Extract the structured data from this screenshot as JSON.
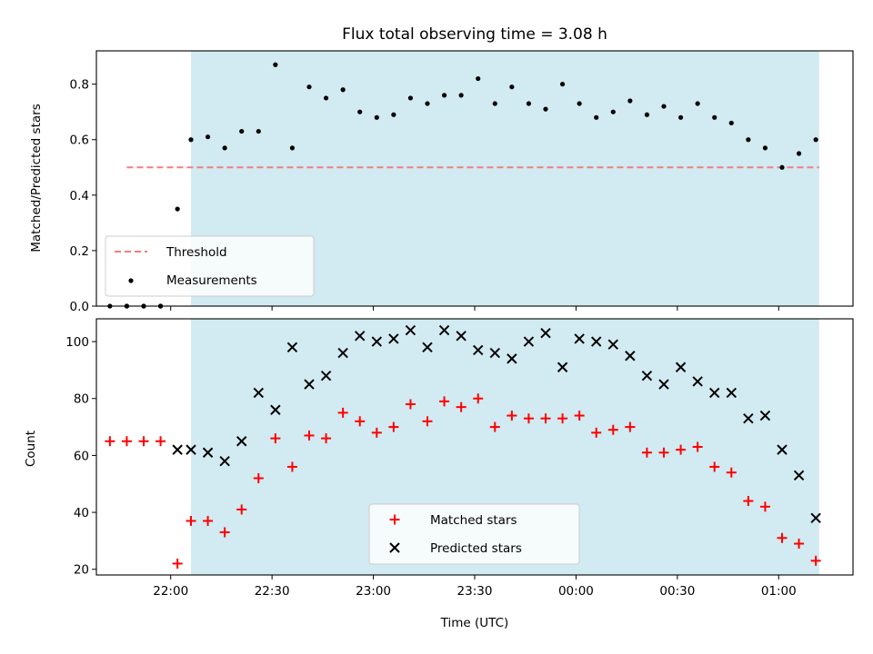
{
  "figure": {
    "title": "Flux total observing time = 3.08 h"
  },
  "chart_data": [
    {
      "type": "scatter",
      "ylabel": "Matched/Predicted stars",
      "xlabel": "",
      "xlim": [
        "21:38",
        "01:22"
      ],
      "ylim": [
        0,
        0.92
      ],
      "yticks": [
        0.0,
        0.2,
        0.4,
        0.6,
        0.8
      ],
      "ytick_labels": [
        "0.0",
        "0.2",
        "0.4",
        "0.6",
        "0.8"
      ],
      "shaded_region": {
        "x": [
          "22:06",
          "01:12"
        ],
        "color": "#add8e6"
      },
      "threshold": {
        "label": "Threshold",
        "y": 0.5,
        "x": [
          "21:47",
          "01:12"
        ],
        "color": "#f08080",
        "style": "dashed"
      },
      "series": [
        {
          "name": "Measurements",
          "marker": "dot",
          "color": "#000000",
          "x": [
            "21:47",
            "21:52",
            "21:57",
            "22:02",
            "22:06",
            "22:11",
            "22:16",
            "22:21",
            "22:26",
            "22:31",
            "22:36",
            "22:41",
            "22:46",
            "22:51",
            "22:56",
            "23:01",
            "23:06",
            "23:11",
            "23:16",
            "23:21",
            "23:26",
            "23:31",
            "23:36",
            "23:41",
            "23:46",
            "23:51",
            "23:56",
            "24:01",
            "24:06",
            "24:11",
            "24:16",
            "24:21",
            "24:26",
            "24:31",
            "24:36",
            "24:41",
            "24:46",
            "24:51",
            "24:56",
            "25:01",
            "25:06",
            "25:11"
          ],
          "y": [
            0.0,
            0.0,
            0.0,
            0.35,
            0.6,
            0.61,
            0.57,
            0.63,
            0.63,
            0.87,
            0.57,
            0.79,
            0.75,
            0.78,
            0.7,
            0.68,
            0.69,
            0.75,
            0.73,
            0.76,
            0.76,
            0.82,
            0.73,
            0.79,
            0.73,
            0.71,
            0.8,
            0.73,
            0.68,
            0.7,
            0.74,
            0.69,
            0.72,
            0.68,
            0.73,
            0.68,
            0.66,
            0.6,
            0.57,
            0.5,
            0.55,
            0.6
          ]
        }
      ],
      "extra_points": {
        "x": [
          "21:42",
          "21:47",
          "21:52",
          "21:57"
        ],
        "y": [
          0.0,
          0.0,
          0.0,
          0.0
        ]
      },
      "legend": {
        "position": "lower-left",
        "entries": [
          "Threshold",
          "Measurements"
        ]
      }
    },
    {
      "type": "scatter",
      "ylabel": "Count",
      "xlabel": "Time (UTC)",
      "xlim": [
        "21:38",
        "01:22"
      ],
      "ylim": [
        18,
        108
      ],
      "yticks": [
        20,
        40,
        60,
        80,
        100
      ],
      "ytick_labels": [
        "20",
        "40",
        "60",
        "80",
        "100"
      ],
      "xticks": [
        "22:00",
        "22:30",
        "23:00",
        "23:30",
        "00:00",
        "00:30",
        "01:00"
      ],
      "shaded_region": {
        "x": [
          "22:06",
          "01:12"
        ],
        "color": "#add8e6"
      },
      "series": [
        {
          "name": "Matched stars",
          "marker": "plus",
          "color": "#ff0000",
          "x": [
            "21:42",
            "21:47",
            "21:52",
            "21:57",
            "22:02",
            "22:06",
            "22:11",
            "22:16",
            "22:21",
            "22:26",
            "22:31",
            "22:36",
            "22:41",
            "22:46",
            "22:51",
            "22:56",
            "23:01",
            "23:06",
            "23:11",
            "23:16",
            "23:21",
            "23:26",
            "23:31",
            "23:36",
            "23:41",
            "23:46",
            "23:51",
            "23:56",
            "24:01",
            "24:06",
            "24:11",
            "24:16",
            "24:21",
            "24:26",
            "24:31",
            "24:36",
            "24:41",
            "24:46",
            "24:51",
            "24:56",
            "25:01",
            "25:06",
            "25:11"
          ],
          "y": [
            65,
            65,
            65,
            65,
            22,
            37,
            37,
            33,
            41,
            52,
            66,
            56,
            67,
            66,
            75,
            72,
            68,
            70,
            78,
            72,
            79,
            77,
            80,
            70,
            74,
            73,
            73,
            73,
            74,
            68,
            69,
            70,
            61,
            61,
            62,
            63,
            56,
            54,
            44,
            42,
            31,
            29,
            23
          ]
        },
        {
          "name": "Predicted stars",
          "marker": "x",
          "color": "#000000",
          "x": [
            "22:02",
            "22:06",
            "22:11",
            "22:16",
            "22:21",
            "22:26",
            "22:31",
            "22:36",
            "22:41",
            "22:46",
            "22:51",
            "22:56",
            "23:01",
            "23:06",
            "23:11",
            "23:16",
            "23:21",
            "23:26",
            "23:31",
            "23:36",
            "23:41",
            "23:46",
            "23:51",
            "23:56",
            "24:01",
            "24:06",
            "24:11",
            "24:16",
            "24:21",
            "24:26",
            "24:31",
            "24:36",
            "24:41",
            "24:46",
            "24:51",
            "24:56",
            "25:01",
            "25:06",
            "25:11"
          ],
          "y": [
            62,
            62,
            61,
            58,
            65,
            82,
            76,
            98,
            85,
            88,
            96,
            102,
            100,
            101,
            104,
            98,
            104,
            102,
            97,
            96,
            94,
            100,
            103,
            91,
            101,
            100,
            99,
            95,
            88,
            85,
            91,
            86,
            82,
            82,
            73,
            74,
            62,
            53,
            38
          ]
        }
      ],
      "legend": {
        "position": "lower-center",
        "entries": [
          "Matched stars",
          "Predicted stars"
        ]
      }
    }
  ]
}
